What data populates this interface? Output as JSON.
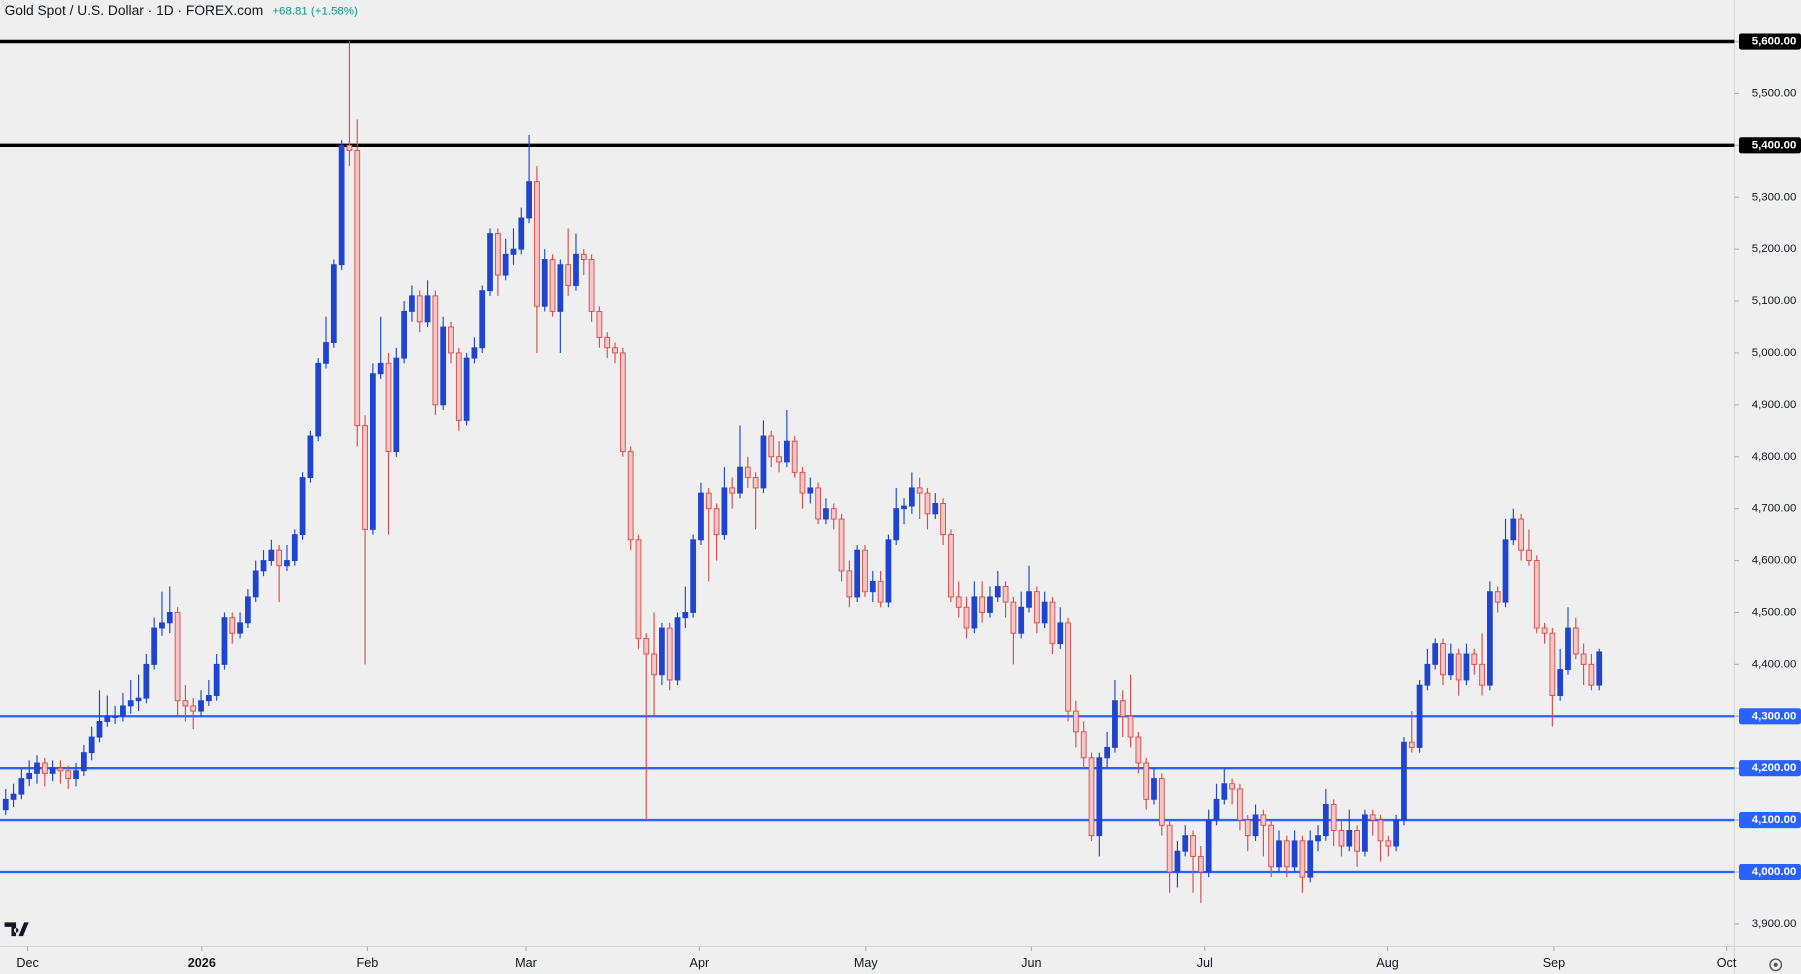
{
  "chart_data": {
    "type": "candlestick",
    "title": "Gold Spot / U.S. Dollar · 1D · FOREX.com",
    "change": "+68.81 (+1.58%)",
    "up_color": "#1f45cf",
    "down_color": "#d84b4b",
    "down_fill": "#f5c6c6",
    "open": [
      4120,
      4140,
      4150,
      4180,
      4190,
      4210,
      4190,
      4200,
      4195,
      4180,
      4195,
      4230,
      4260,
      4290,
      4300,
      4300,
      4320,
      4330,
      4335,
      4400,
      4470,
      4480,
      4500,
      4330,
      4320,
      4310,
      4330,
      4340,
      4400,
      4490,
      4460,
      4480,
      4530,
      4580,
      4600,
      4620,
      4590,
      4600,
      4650,
      4760,
      4840,
      4980,
      5020,
      5170,
      5400,
      5390,
      4860,
      4660,
      4960,
      4980,
      4810,
      4990,
      5080,
      5110,
      5060,
      5110,
      4900,
      5050,
      5000,
      4870,
      4990,
      5010,
      5120,
      5230,
      5150,
      5190,
      5200,
      5260,
      5330,
      5090,
      5180,
      5080,
      5170,
      5130,
      5190,
      5180,
      5080,
      5030,
      5010,
      5000,
      4810,
      4640,
      4450,
      4420,
      4380,
      4470,
      4370,
      4490,
      4500,
      4640,
      4730,
      4700,
      4650,
      4740,
      4730,
      4780,
      4760,
      4740,
      4840,
      4800,
      4790,
      4830,
      4770,
      4730,
      4740,
      4680,
      4700,
      4680,
      4580,
      4530,
      4620,
      4540,
      4560,
      4520,
      4640,
      4700,
      4705,
      4740,
      4730,
      4690,
      4710,
      4650,
      4530,
      4510,
      4470,
      4530,
      4500,
      4530,
      4550,
      4520,
      4460,
      4510,
      4540,
      4480,
      4520,
      4440,
      4480,
      4310,
      4270,
      4220,
      4070,
      4220,
      4240,
      4330,
      4300,
      4260,
      4210,
      4140,
      4180,
      4090,
      4000,
      4040,
      4070,
      4030,
      4000,
      4100,
      4140,
      4170,
      4160,
      4100,
      4070,
      4110,
      4090,
      4010,
      4060,
      4010,
      4060,
      3990,
      4060,
      4070,
      4130,
      4080,
      4050,
      4080,
      4040,
      4110,
      4100,
      4060,
      4050,
      4100,
      4250,
      4240,
      4360,
      4400,
      4440,
      4380,
      4420,
      4370,
      4420,
      4400,
      4360,
      4540,
      4520,
      4640,
      4680,
      4620,
      4600,
      4470,
      4460,
      4340,
      4390,
      4470,
      4420,
      4400,
      4360
    ],
    "high": [
      4160,
      4170,
      4200,
      4215,
      4225,
      4220,
      4215,
      4215,
      4205,
      4210,
      4245,
      4280,
      4350,
      4340,
      4320,
      4345,
      4370,
      4380,
      4420,
      4490,
      4540,
      4550,
      4510,
      4360,
      4335,
      4350,
      4370,
      4420,
      4500,
      4500,
      4500,
      4545,
      4600,
      4620,
      4640,
      4630,
      4630,
      4660,
      4770,
      4850,
      4990,
      5070,
      5180,
      5410,
      5600,
      5450,
      4880,
      4980,
      5070,
      5000,
      5010,
      5100,
      5130,
      5120,
      5140,
      5120,
      5070,
      5060,
      5010,
      5000,
      5030,
      5130,
      5240,
      5240,
      5220,
      5240,
      5280,
      5420,
      5360,
      5200,
      5190,
      5180,
      5240,
      5230,
      5200,
      5190,
      5090,
      5040,
      5020,
      5010,
      4820,
      4650,
      4460,
      4500,
      4480,
      4480,
      4500,
      4550,
      4650,
      4750,
      4740,
      4710,
      4780,
      4760,
      4860,
      4800,
      4770,
      4870,
      4850,
      4830,
      4890,
      4840,
      4780,
      4760,
      4750,
      4720,
      4710,
      4690,
      4600,
      4630,
      4630,
      4580,
      4580,
      4650,
      4740,
      4720,
      4770,
      4760,
      4740,
      4730,
      4720,
      4660,
      4560,
      4530,
      4560,
      4560,
      4550,
      4580,
      4560,
      4530,
      4540,
      4590,
      4550,
      4540,
      4530,
      4510,
      4490,
      4330,
      4290,
      4230,
      4230,
      4270,
      4370,
      4350,
      4380,
      4270,
      4220,
      4200,
      4190,
      4100,
      4060,
      4090,
      4080,
      4050,
      4120,
      4170,
      4200,
      4180,
      4170,
      4110,
      4130,
      4120,
      4100,
      4080,
      4070,
      4080,
      4070,
      4080,
      4090,
      4160,
      4140,
      4100,
      4120,
      4090,
      4120,
      4120,
      4110,
      4070,
      4110,
      4260,
      4310,
      4370,
      4430,
      4450,
      4450,
      4440,
      4430,
      4440,
      4430,
      4460,
      4560,
      4550,
      4680,
      4700,
      4690,
      4660,
      4610,
      4480,
      4470,
      4430,
      4510,
      4490,
      4440,
      4420,
      4430
    ],
    "low": [
      4110,
      4125,
      4140,
      4165,
      4170,
      4165,
      4175,
      4170,
      4160,
      4165,
      4185,
      4215,
      4250,
      4280,
      4285,
      4290,
      4305,
      4310,
      4325,
      4390,
      4455,
      4460,
      4300,
      4290,
      4275,
      4300,
      4320,
      4330,
      4390,
      4440,
      4450,
      4470,
      4520,
      4570,
      4590,
      4520,
      4580,
      4590,
      4640,
      4750,
      4830,
      4970,
      5010,
      5160,
      5360,
      4820,
      4400,
      4650,
      4950,
      4650,
      4800,
      4980,
      5060,
      5040,
      5050,
      4880,
      4890,
      4980,
      4850,
      4860,
      4980,
      5000,
      5110,
      5110,
      5140,
      5170,
      5190,
      5250,
      5000,
      5080,
      5070,
      5000,
      5110,
      5120,
      5150,
      5060,
      5010,
      4990,
      4980,
      4800,
      4620,
      4430,
      4100,
      4300,
      4360,
      4350,
      4360,
      4470,
      4490,
      4630,
      4560,
      4600,
      4640,
      4700,
      4720,
      4740,
      4660,
      4730,
      4780,
      4770,
      4780,
      4760,
      4700,
      4710,
      4670,
      4670,
      4660,
      4560,
      4510,
      4520,
      4530,
      4520,
      4510,
      4510,
      4630,
      4670,
      4690,
      4680,
      4660,
      4680,
      4630,
      4520,
      4490,
      4450,
      4460,
      4480,
      4490,
      4520,
      4490,
      4400,
      4450,
      4500,
      4460,
      4470,
      4420,
      4430,
      4290,
      4240,
      4200,
      4060,
      4030,
      4200,
      4230,
      4260,
      4240,
      4190,
      4120,
      4130,
      4070,
      3960,
      3970,
      4030,
      3960,
      3940,
      3990,
      4090,
      4130,
      4130,
      4080,
      4040,
      4060,
      4030,
      3990,
      4000,
      3990,
      4000,
      3960,
      3980,
      4040,
      4060,
      4050,
      4030,
      4040,
      4010,
      4030,
      4070,
      4020,
      4030,
      4040,
      4090,
      4230,
      4230,
      4350,
      4390,
      4360,
      4370,
      4340,
      4360,
      4380,
      4340,
      4350,
      4500,
      4510,
      4630,
      4600,
      4590,
      4460,
      4440,
      4280,
      4330,
      4380,
      4410,
      4360,
      4350,
      4350
    ],
    "close": [
      4140,
      4150,
      4180,
      4190,
      4210,
      4190,
      4200,
      4195,
      4180,
      4195,
      4230,
      4260,
      4290,
      4300,
      4300,
      4320,
      4330,
      4335,
      4400,
      4470,
      4480,
      4500,
      4330,
      4320,
      4310,
      4330,
      4340,
      4400,
      4490,
      4460,
      4480,
      4530,
      4580,
      4600,
      4620,
      4590,
      4600,
      4650,
      4760,
      4840,
      4980,
      5020,
      5170,
      5400,
      5390,
      4860,
      4660,
      4960,
      4980,
      4810,
      4990,
      5080,
      5110,
      5060,
      5110,
      4900,
      5050,
      5000,
      4870,
      4990,
      5010,
      5120,
      5230,
      5150,
      5190,
      5200,
      5260,
      5330,
      5090,
      5180,
      5080,
      5170,
      5130,
      5190,
      5180,
      5080,
      5030,
      5010,
      5000,
      4810,
      4640,
      4450,
      4420,
      4380,
      4470,
      4370,
      4490,
      4500,
      4640,
      4730,
      4700,
      4650,
      4740,
      4730,
      4780,
      4760,
      4740,
      4840,
      4800,
      4790,
      4830,
      4770,
      4730,
      4740,
      4680,
      4700,
      4680,
      4580,
      4530,
      4620,
      4540,
      4560,
      4520,
      4640,
      4700,
      4705,
      4740,
      4730,
      4690,
      4710,
      4650,
      4530,
      4510,
      4470,
      4530,
      4500,
      4530,
      4550,
      4520,
      4460,
      4510,
      4540,
      4480,
      4520,
      4440,
      4480,
      4310,
      4270,
      4220,
      4070,
      4220,
      4240,
      4330,
      4300,
      4260,
      4210,
      4140,
      4180,
      4090,
      4000,
      4040,
      4070,
      4030,
      4000,
      4100,
      4140,
      4170,
      4160,
      4100,
      4070,
      4110,
      4090,
      4010,
      4060,
      4010,
      4060,
      3990,
      4060,
      4070,
      4130,
      4080,
      4050,
      4080,
      4040,
      4110,
      4100,
      4060,
      4050,
      4100,
      4250,
      4240,
      4360,
      4400,
      4440,
      4380,
      4420,
      4370,
      4420,
      4400,
      4360,
      4540,
      4520,
      4640,
      4680,
      4620,
      4600,
      4470,
      4460,
      4340,
      4390,
      4470,
      4420,
      4400,
      4360,
      4424
    ],
    "levels": [
      {
        "value": 5600,
        "color": "#000000"
      },
      {
        "value": 5400,
        "color": "#000000"
      },
      {
        "value": 4300,
        "color": "#2962ff"
      },
      {
        "value": 4200,
        "color": "#2962ff"
      },
      {
        "value": 4100,
        "color": "#2962ff"
      },
      {
        "value": 4000,
        "color": "#2962ff"
      }
    ],
    "xlim": [
      -0.735,
      221.3
    ],
    "xticks": [
      {
        "value": 2.8,
        "label": "Dec"
      },
      {
        "value": 25.1,
        "label": "2026"
      },
      {
        "value": 46.3,
        "label": "Feb"
      },
      {
        "value": 66.6,
        "label": "Mar"
      },
      {
        "value": 88.8,
        "label": "Apr"
      },
      {
        "value": 110.1,
        "label": "May"
      },
      {
        "value": 131.3,
        "label": "Jun"
      },
      {
        "value": 153.5,
        "label": "Jul"
      },
      {
        "value": 176.9,
        "label": "Aug"
      },
      {
        "value": 198.2,
        "label": "Sep"
      },
      {
        "value": 220.3,
        "label": "Oct"
      }
    ],
    "ylim": [
      3861,
      5680
    ],
    "yticks": [
      {
        "value": 5600,
        "label": "5,600.00"
      },
      {
        "value": 5500,
        "label": "5,500.00"
      },
      {
        "value": 5400,
        "label": "5,400.00"
      },
      {
        "value": 5300,
        "label": "5,300.00"
      },
      {
        "value": 5200,
        "label": "5,200.00"
      },
      {
        "value": 5100,
        "label": "5,100.00"
      },
      {
        "value": 5000,
        "label": "5,000.00"
      },
      {
        "value": 4900,
        "label": "4,900.00"
      },
      {
        "value": 4800,
        "label": "4,800.00"
      },
      {
        "value": 4700,
        "label": "4,700.00"
      },
      {
        "value": 4600,
        "label": "4,600.00"
      },
      {
        "value": 4500,
        "label": "4,500.00"
      },
      {
        "value": 4400,
        "label": "4,400.00"
      },
      {
        "value": 4300,
        "label": "4,300.00"
      },
      {
        "value": 4200,
        "label": "4,200.00"
      },
      {
        "value": 4100,
        "label": "4,100.00"
      },
      {
        "value": 4000,
        "label": "4,000.00"
      },
      {
        "value": 3900,
        "label": "3,900.00"
      }
    ]
  }
}
